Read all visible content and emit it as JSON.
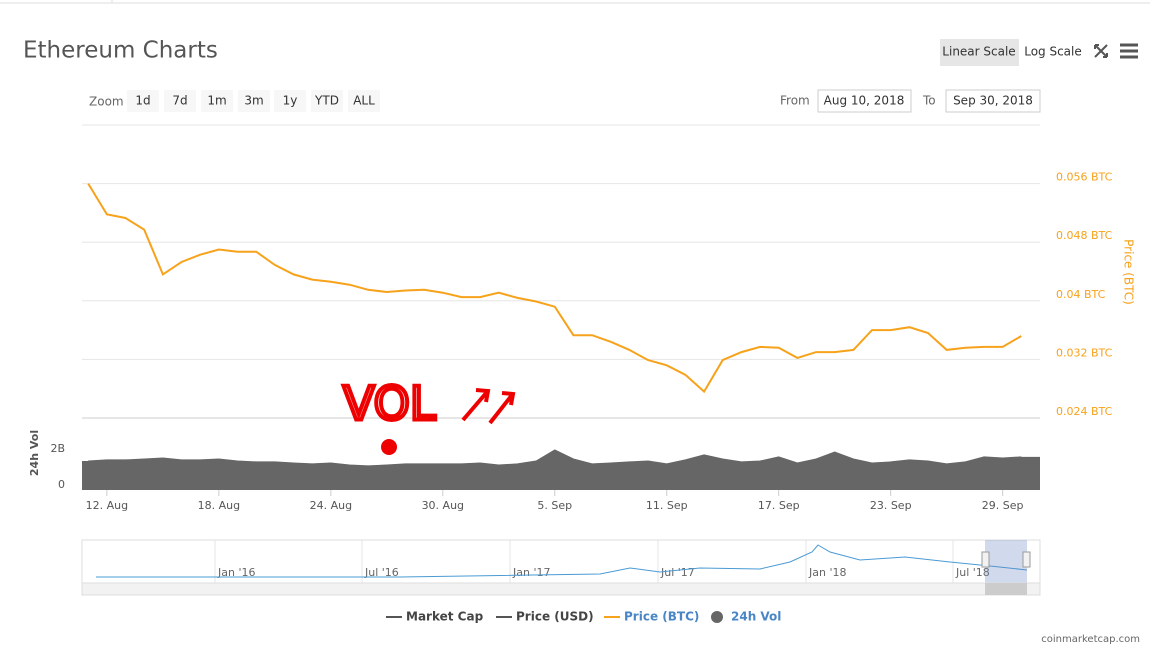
{
  "title": "Ethereum Charts",
  "controls": {
    "scale_buttons": [
      "Linear Scale",
      "Log Scale"
    ],
    "zoom_label": "Zoom",
    "zoom_buttons": [
      "1d",
      "7d",
      "1m",
      "3m",
      "1y",
      "YTD",
      "ALL"
    ],
    "from_label": "From",
    "from": "Aug 10, 2018",
    "to_label": "To",
    "to": "Sep 30, 2018"
  },
  "annotation": "VOL",
  "legend_inactive": [
    "Market Cap",
    "Price (USD)"
  ],
  "navigator_labels": [
    "Jan '16",
    "Jul '16",
    "Jan '17",
    "Jul '17",
    "Jan '18",
    "Jul '18"
  ],
  "credit": "coinmarketcap.com",
  "chart_data": [
    {
      "type": "line",
      "ylabel": "Price (BTC)",
      "y_axis_position": "right",
      "grid": true,
      "x": [
        "2018-08-11",
        "2018-08-12",
        "2018-08-13",
        "2018-08-14",
        "2018-08-15",
        "2018-08-16",
        "2018-08-17",
        "2018-08-18",
        "2018-08-19",
        "2018-08-20",
        "2018-08-21",
        "2018-08-22",
        "2018-08-23",
        "2018-08-24",
        "2018-08-25",
        "2018-08-26",
        "2018-08-27",
        "2018-08-28",
        "2018-08-29",
        "2018-08-30",
        "2018-08-31",
        "2018-09-01",
        "2018-09-02",
        "2018-09-03",
        "2018-09-04",
        "2018-09-05",
        "2018-09-06",
        "2018-09-07",
        "2018-09-08",
        "2018-09-09",
        "2018-09-10",
        "2018-09-11",
        "2018-09-12",
        "2018-09-13",
        "2018-09-14",
        "2018-09-15",
        "2018-09-16",
        "2018-09-17",
        "2018-09-18",
        "2018-09-19",
        "2018-09-20",
        "2018-09-21",
        "2018-09-22",
        "2018-09-23",
        "2018-09-24",
        "2018-09-25",
        "2018-09-26",
        "2018-09-27",
        "2018-09-28",
        "2018-09-29",
        "2018-09-30"
      ],
      "xlim": [
        "2018-08-10T16:00:00Z",
        "2018-10-01T00:00:00Z"
      ],
      "series": [
        {
          "name": "Price (BTC)",
          "color": "#f7a21b",
          "values": [
            0.056,
            0.0518,
            0.0513,
            0.0497,
            0.0436,
            0.0453,
            0.0463,
            0.047,
            0.0467,
            0.0467,
            0.0449,
            0.0436,
            0.0429,
            0.0426,
            0.0422,
            0.0415,
            0.0412,
            0.0414,
            0.0415,
            0.0411,
            0.0405,
            0.0405,
            0.0411,
            0.0404,
            0.0399,
            0.0392,
            0.0353,
            0.0353,
            0.0344,
            0.0333,
            0.0319,
            0.0312,
            0.0299,
            0.0276,
            0.0319,
            0.033,
            0.0337,
            0.0336,
            0.0322,
            0.033,
            0.033,
            0.0333,
            0.036,
            0.036,
            0.0364,
            0.0356,
            0.0333,
            0.0336,
            0.0337,
            0.0337,
            0.0352
          ]
        }
      ],
      "ylim": [
        0.024,
        0.064
      ],
      "yticks": [
        {
          "value": 0.024,
          "label": "0.024 BTC"
        },
        {
          "value": 0.032,
          "label": "0.032 BTC"
        },
        {
          "value": 0.04,
          "label": "0.04 BTC"
        },
        {
          "value": 0.048,
          "label": "0.048 BTC"
        },
        {
          "value": 0.056,
          "label": "0.056 BTC"
        }
      ]
    },
    {
      "type": "area",
      "ylabel": "24h Vol",
      "y_axis_position": "left",
      "grid": false,
      "x": [
        "2018-08-11",
        "2018-08-12",
        "2018-08-13",
        "2018-08-14",
        "2018-08-15",
        "2018-08-16",
        "2018-08-17",
        "2018-08-18",
        "2018-08-19",
        "2018-08-20",
        "2018-08-21",
        "2018-08-22",
        "2018-08-23",
        "2018-08-24",
        "2018-08-25",
        "2018-08-26",
        "2018-08-27",
        "2018-08-28",
        "2018-08-29",
        "2018-08-30",
        "2018-08-31",
        "2018-09-01",
        "2018-09-02",
        "2018-09-03",
        "2018-09-04",
        "2018-09-05",
        "2018-09-06",
        "2018-09-07",
        "2018-09-08",
        "2018-09-09",
        "2018-09-10",
        "2018-09-11",
        "2018-09-12",
        "2018-09-13",
        "2018-09-14",
        "2018-09-15",
        "2018-09-16",
        "2018-09-17",
        "2018-09-18",
        "2018-09-19",
        "2018-09-20",
        "2018-09-21",
        "2018-09-22",
        "2018-09-23",
        "2018-09-24",
        "2018-09-25",
        "2018-09-26",
        "2018-09-27",
        "2018-09-28",
        "2018-09-29",
        "2018-09-30"
      ],
      "xlim": [
        "2018-08-10T16:00:00Z",
        "2018-10-01T00:00:00Z"
      ],
      "xticks": [
        {
          "value": "2018-08-12",
          "label": "12. Aug"
        },
        {
          "value": "2018-08-18",
          "label": "18. Aug"
        },
        {
          "value": "2018-08-24",
          "label": "24. Aug"
        },
        {
          "value": "2018-08-30",
          "label": "30. Aug"
        },
        {
          "value": "2018-09-05",
          "label": "5. Sep"
        },
        {
          "value": "2018-09-11",
          "label": "11. Sep"
        },
        {
          "value": "2018-09-17",
          "label": "17. Sep"
        },
        {
          "value": "2018-09-23",
          "label": "23. Sep"
        },
        {
          "value": "2018-09-29",
          "label": "29. Sep"
        }
      ],
      "series": [
        {
          "name": "24h Vol",
          "color": "#666666",
          "values": [
            1330000000,
            1390000000,
            1390000000,
            1440000000,
            1500000000,
            1390000000,
            1390000000,
            1440000000,
            1330000000,
            1280000000,
            1280000000,
            1220000000,
            1170000000,
            1220000000,
            1110000000,
            1060000000,
            1110000000,
            1170000000,
            1170000000,
            1170000000,
            1170000000,
            1220000000,
            1110000000,
            1170000000,
            1330000000,
            1940000000,
            1440000000,
            1170000000,
            1220000000,
            1280000000,
            1330000000,
            1170000000,
            1390000000,
            1670000000,
            1440000000,
            1280000000,
            1330000000,
            1560000000,
            1220000000,
            1440000000,
            1830000000,
            1440000000,
            1220000000,
            1280000000,
            1390000000,
            1330000000,
            1170000000,
            1280000000,
            1560000000,
            1500000000,
            1560000000
          ]
        }
      ],
      "ylim": [
        -280000000,
        3720000000
      ],
      "yticks": [
        0,
        {
          "value": 2000000000,
          "label": "2B"
        }
      ]
    }
  ]
}
